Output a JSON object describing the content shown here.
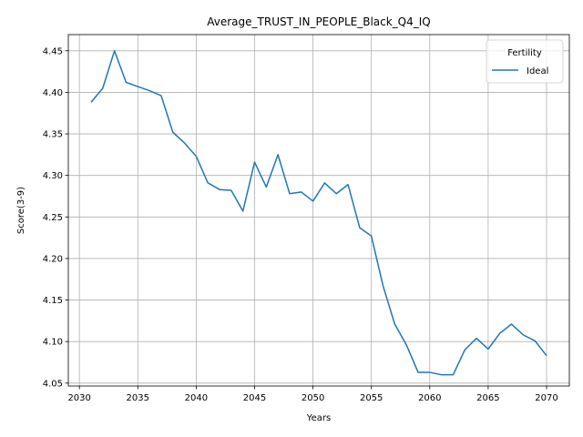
{
  "chart_data": {
    "type": "line",
    "title": "Average_TRUST_IN_PEOPLE_Black_Q4_IQ",
    "xlabel": "Years",
    "ylabel": "Score(3-9)",
    "xlim": [
      2029.05,
      2071.95
    ],
    "ylim": [
      4.0465,
      4.4695
    ],
    "xticks": [
      2030,
      2035,
      2040,
      2045,
      2050,
      2055,
      2060,
      2065,
      2070
    ],
    "yticks": [
      4.05,
      4.1,
      4.15,
      4.2,
      4.25,
      4.3,
      4.35,
      4.4,
      4.45
    ],
    "ytick_labels": [
      "4.05",
      "4.10",
      "4.15",
      "4.20",
      "4.25",
      "4.30",
      "4.35",
      "4.40",
      "4.45"
    ],
    "grid": true,
    "legend": {
      "title": "Fertility",
      "placement": "upper-right"
    },
    "series": [
      {
        "name": "Ideal",
        "color": "#1f77b4",
        "x": [
          2031,
          2032,
          2033,
          2034,
          2035,
          2036,
          2037,
          2038,
          2039,
          2040,
          2041,
          2042,
          2043,
          2044,
          2045,
          2046,
          2047,
          2048,
          2049,
          2050,
          2051,
          2052,
          2053,
          2054,
          2055,
          2056,
          2057,
          2058,
          2059,
          2060,
          2061,
          2062,
          2063,
          2064,
          2065,
          2066,
          2067,
          2068,
          2069,
          2070
        ],
        "y": [
          4.388,
          4.405,
          4.45,
          4.412,
          4.407,
          4.402,
          4.396,
          4.352,
          4.339,
          4.323,
          4.291,
          4.283,
          4.282,
          4.257,
          4.316,
          4.286,
          4.325,
          4.278,
          4.28,
          4.269,
          4.291,
          4.278,
          4.289,
          4.237,
          4.227,
          4.167,
          4.121,
          4.096,
          4.063,
          4.063,
          4.06,
          4.06,
          4.09,
          4.104,
          4.091,
          4.11,
          4.121,
          4.108,
          4.101,
          4.083
        ]
      }
    ]
  }
}
